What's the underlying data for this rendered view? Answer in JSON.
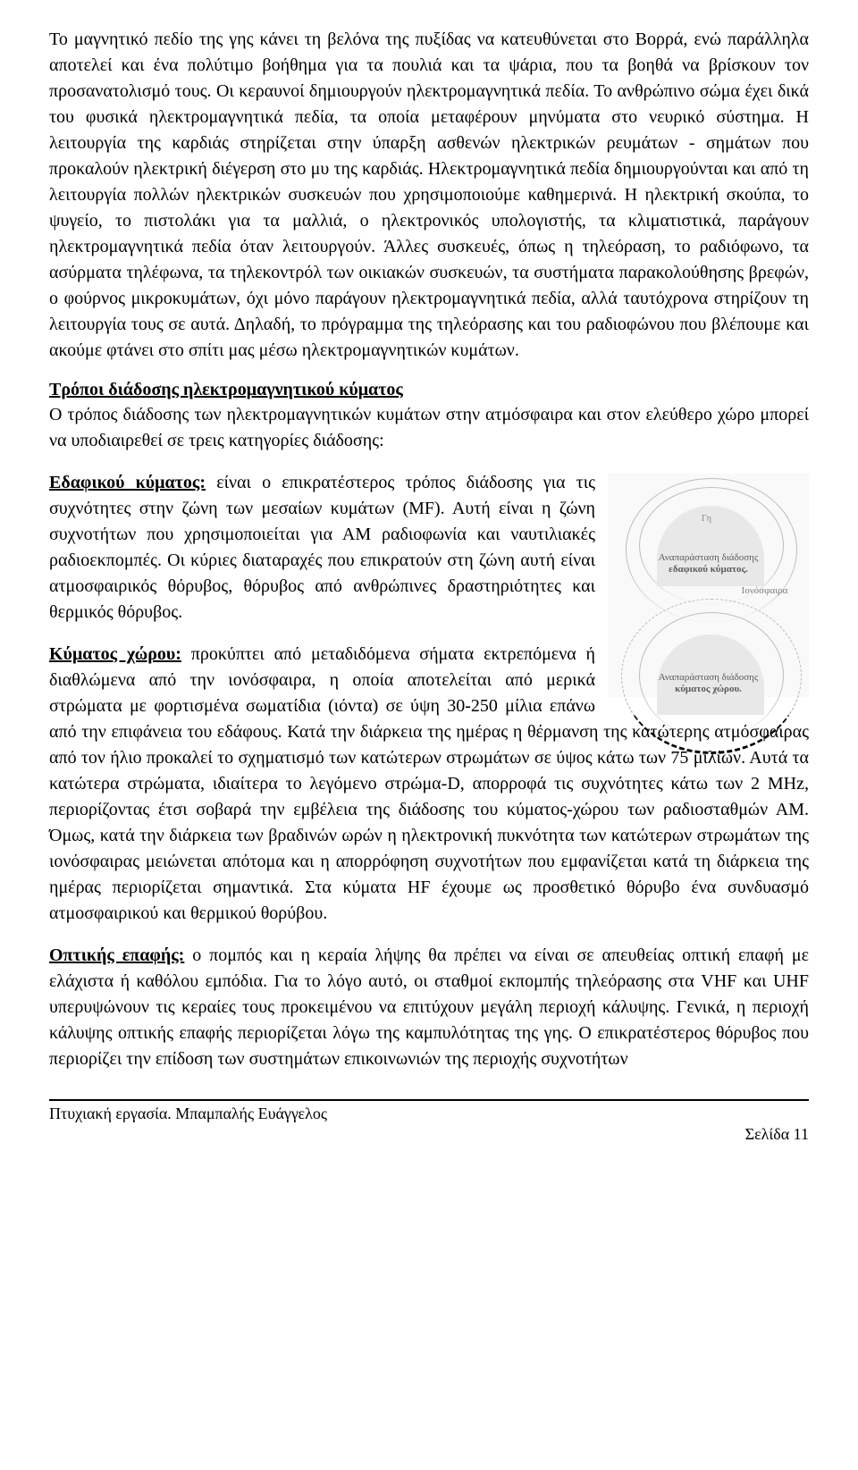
{
  "para1": "Το μαγνητικό πεδίο της γης κάνει τη βελόνα της πυξίδας να κατευθύνεται στο Βορρά, ενώ παράλληλα αποτελεί και ένα πολύτιμο βοήθημα για τα πουλιά και τα ψάρια, που τα βοηθά να βρίσκουν τον προσανατολισμό τους. Οι κεραυνοί δημιουργούν ηλεκτρομαγνητικά πεδία. Το ανθρώπινο σώμα έχει δικά του φυσικά ηλεκτρομαγνητικά πεδία, τα οποία μεταφέρουν μηνύματα στο νευρικό σύστημα. Η λειτουργία της καρδιάς στηρίζεται στην ύπαρξη ασθενών ηλεκτρικών ρευμάτων - σημάτων που προκαλούν ηλεκτρική διέγερση στο μυ της καρδιάς. Ηλεκτρομαγνητικά πεδία δημιουργούνται και από τη λειτουργία πολλών ηλεκτρικών συσκευών που χρησιμοποιούμε καθημερινά. Η ηλεκτρική σκούπα, το ψυγείο, το πιστολάκι για τα μαλλιά, ο ηλεκτρονικός υπολογιστής, τα κλιματιστικά, παράγουν ηλεκτρομαγνητικά πεδία όταν λειτουργούν. Άλλες συσκευές, όπως η τηλεόραση, το ραδιόφωνο, τα ασύρματα τηλέφωνα, τα τηλεκοντρόλ των οικιακών συσκευών, τα συστήματα παρακολούθησης βρεφών, ο φούρνος μικροκυμάτων, όχι μόνο παράγουν ηλεκτρομαγνητικά πεδία, αλλά ταυτόχρονα στηρίζουν τη λειτουργία τους σε αυτά. Δηλαδή, το πρόγραμμα της τηλεόρασης και του ραδιοφώνου που βλέπουμε και ακούμε φτάνει στο σπίτι μας μέσω ηλεκτρομαγνητικών κυμάτων.",
  "heading2": "Τρόποι διάδοσης ηλεκτρομαγνητικού κύματος",
  "para2": "Ο τρόπος διάδοσης των ηλεκτρομαγνητικών κυμάτων στην ατμόσφαιρα και στον ελεύθερο χώρο μπορεί να υποδιαιρεθεί σε τρεις κατηγορίες διάδοσης:",
  "section3": {
    "label": "Εδαφικού κύματος:",
    "text": " είναι ο επικρατέστερος τρόπος διάδοσης για τις συχνότητες στην ζώνη των μεσαίων κυμάτων (MF). Αυτή είναι η ζώνη συχνοτήτων που χρησιμοποιείται για ΑΜ ραδιοφωνία και ναυτιλιακές ραδιοεκπομπές. Οι κύριες διαταραχές που επικρατούν στη ζώνη αυτή είναι ατμοσφαιρικός θόρυβος, θόρυβος από ανθρώπινες δραστηριότητες και θερμικός θόρυβος."
  },
  "section4": {
    "label": "Κύματος χώρου:",
    "text": " προκύπτει από μεταδιδόμενα σήματα εκτρεπόμενα ή διαθλώμενα από την ιονόσφαιρα, η οποία αποτελείται από μερικά στρώματα με φορτισμένα σωματίδια (ιόντα) σε ύψη 30-250 μίλια επάνω από την επιφάνεια του εδάφους. Κατά την διάρκεια της ημέρας η θέρμανση της κατώτερης ατμόσφαιρας από τον ήλιο προκαλεί το σχηματισμό των κατώτερων στρωμάτων σε ύψος κάτω των 75 μιλίων. Αυτά τα κατώτερα στρώματα, ιδιαίτερα το λεγόμενο στρώμα-D, απορροφά τις συχνότητες κάτω των 2 MHz, περιορίζοντας έτσι σοβαρά την εμβέλεια της διάδοσης του κύματος-χώρου των ραδιοσταθμών ΑΜ. Όμως, κατά την διάρκεια των βραδινών ωρών η ηλεκτρονική πυκνότητα των κατώτερων στρωμάτων της ιονόσφαιρας μειώνεται απότομα και η απορρόφηση συχνοτήτων που εμφανίζεται κατά τη διάρκεια της ημέρας περιορίζεται σημαντικά. Στα κύματα HF έχουμε ως προσθετικό θόρυβο ένα συνδυασμό ατμοσφαιρικού και θερμικού θορύβου."
  },
  "section5": {
    "label": "Οπτικής επαφής:",
    "text": " ο πομπός και η κεραία λήψης θα πρέπει να είναι σε απευθείας οπτική επαφή με ελάχιστα ή καθόλου εμπόδια. Για το λόγο αυτό, οι σταθμοί εκπομπής τηλεόρασης στα VHF και UHF υπερυψώνουν τις κεραίες τους προκειμένου να επιτύχουν μεγάλη περιοχή κάλυψης. Γενικά, η περιοχή κάλυψης οπτικής επαφής περιορίζεται λόγω της καμπυλότητας της γης. Ο επικρατέστερος θόρυβος που περιορίζει την επίδοση των συστημάτων επικοινωνιών της περιοχής συχνοτήτων"
  },
  "figure": {
    "gh": "Γη",
    "caption_top_l1": "Αναπαράσταση διάδοσης",
    "caption_top_l2": "εδαφικού κύματος.",
    "mid": "Ιονόσφαιρα",
    "caption_bot_l1": "Αναπαράσταση διάδοσης",
    "caption_bot_l2": "κύματος χώρου."
  },
  "footer": {
    "left": "Πτυχιακή εργασία. Μπαμπαλής Ευάγγελος",
    "right": "Σελίδα 11"
  }
}
